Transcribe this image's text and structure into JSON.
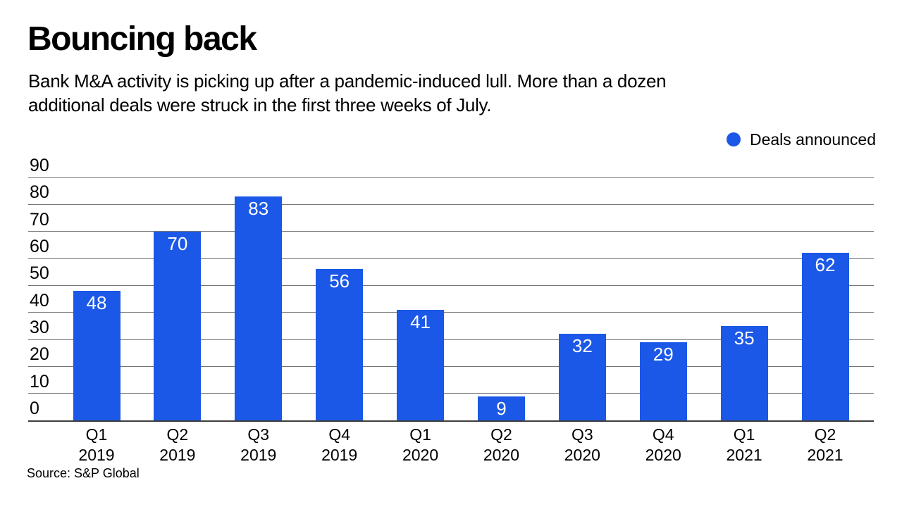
{
  "header": {
    "title": "Bouncing back",
    "subtitle_line1": "Bank M&A activity is picking up after a pandemic-induced lull. More than a dozen",
    "subtitle_line2": "additional deals were struck in the first three weeks of July."
  },
  "legend": {
    "label": "Deals announced"
  },
  "chart_data": {
    "type": "bar",
    "title": "Bouncing back",
    "series_name": "Deals announced",
    "categories": [
      {
        "quarter": "Q1",
        "year": "2019"
      },
      {
        "quarter": "Q2",
        "year": "2019"
      },
      {
        "quarter": "Q3",
        "year": "2019"
      },
      {
        "quarter": "Q4",
        "year": "2019"
      },
      {
        "quarter": "Q1",
        "year": "2020"
      },
      {
        "quarter": "Q2",
        "year": "2020"
      },
      {
        "quarter": "Q3",
        "year": "2020"
      },
      {
        "quarter": "Q4",
        "year": "2020"
      },
      {
        "quarter": "Q1",
        "year": "2021"
      },
      {
        "quarter": "Q2",
        "year": "2021"
      }
    ],
    "values": [
      48,
      70,
      83,
      56,
      41,
      9,
      32,
      29,
      35,
      62
    ],
    "ylim": [
      0,
      90
    ],
    "yticks": [
      0,
      10,
      20,
      30,
      40,
      50,
      60,
      70,
      80,
      90
    ],
    "grid": "horizontal",
    "legend_position": "top-right",
    "value_labels": "inside-top-white",
    "bar_color": "#1B58E7",
    "value_label_color": "#FFFFFF",
    "gridline_color": "#757575",
    "axis_line_color": "#3D3D3D"
  },
  "source": {
    "text": "Source: S&P Global"
  }
}
